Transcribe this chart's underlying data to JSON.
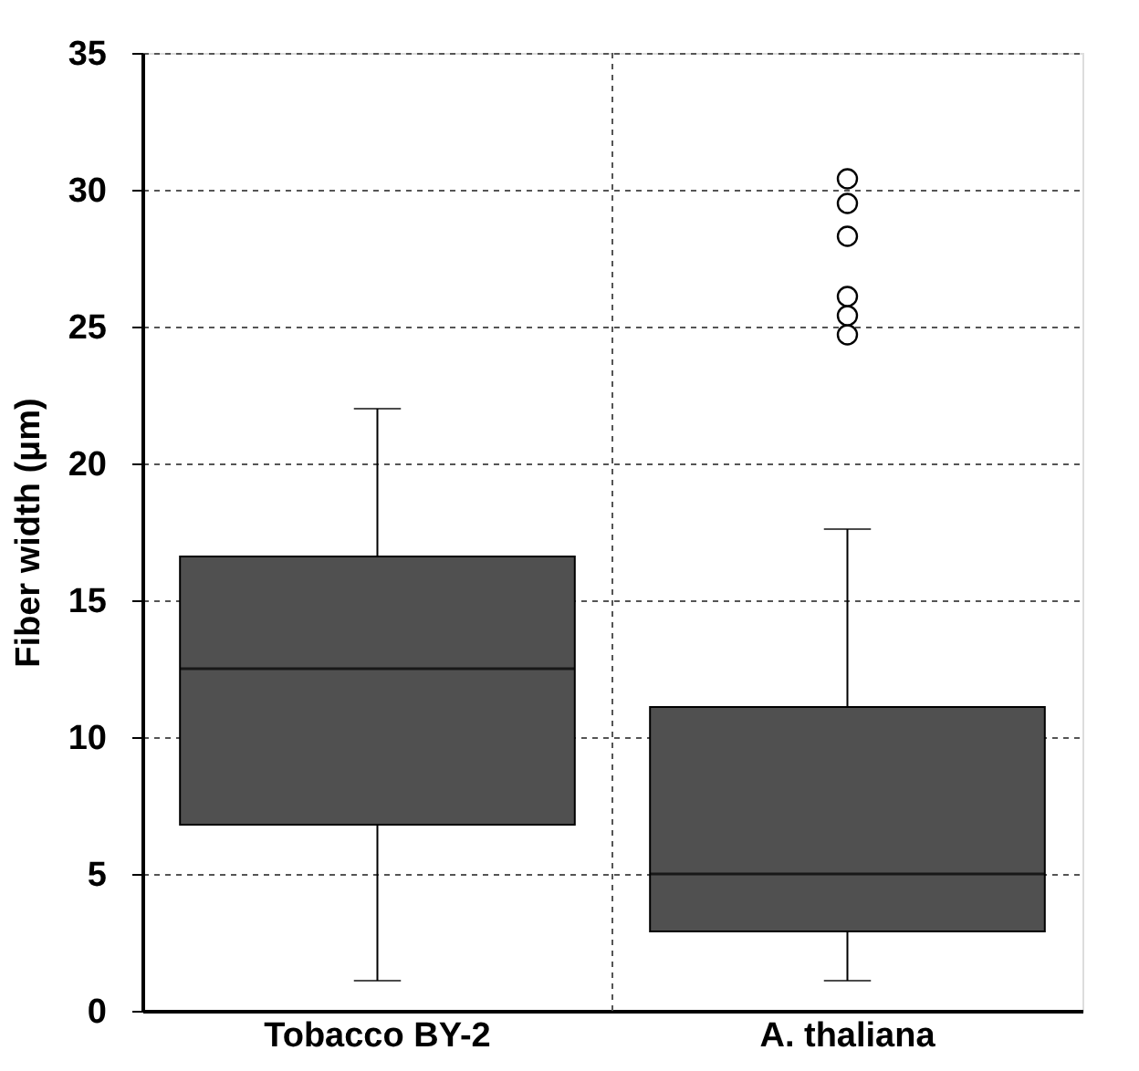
{
  "chart_data": {
    "type": "box",
    "ylabel": "Fiber width (μm)",
    "categories": [
      "Tobacco BY-2",
      "A. thaliana"
    ],
    "boxes": [
      {
        "low": 1.1,
        "q1": 6.8,
        "median": 12.5,
        "q3": 16.6,
        "high": 22.0
      },
      {
        "low": 1.1,
        "q1": 2.9,
        "median": 5.0,
        "q3": 11.1,
        "high": 17.6,
        "outliers": [
          24.7,
          25.4,
          26.1,
          28.3,
          29.5,
          30.4
        ]
      }
    ],
    "color": "#505050",
    "ylim": [
      0,
      35
    ],
    "yticks": [
      0,
      5,
      10,
      15,
      20,
      25,
      30,
      35
    ],
    "grid": true
  }
}
